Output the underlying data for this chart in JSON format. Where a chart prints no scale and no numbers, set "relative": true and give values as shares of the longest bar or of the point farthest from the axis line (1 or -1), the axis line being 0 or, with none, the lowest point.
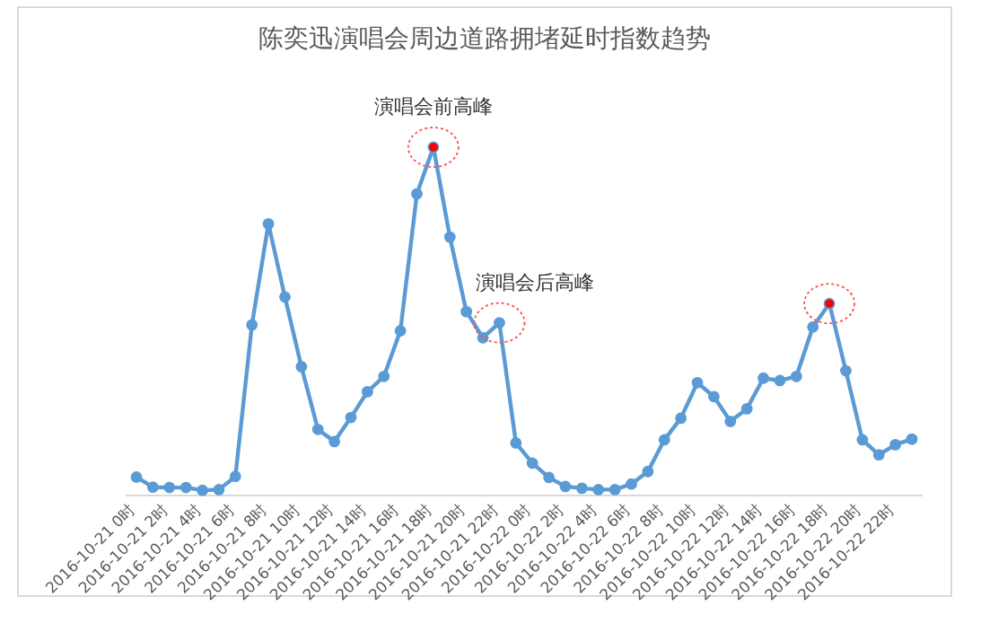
{
  "chart_data": {
    "type": "line",
    "title": "陈奕迅演唱会周边道路拥堵延时指数趋势",
    "relative": true,
    "marker": "circle",
    "categories": [
      "2016-10-21 0时",
      null,
      "2016-10-21 2时",
      null,
      "2016-10-21 4时",
      null,
      "2016-10-21 6时",
      null,
      "2016-10-21 8时",
      null,
      "2016-10-21 10时",
      null,
      "2016-10-21 12时",
      null,
      "2016-10-21 14时",
      null,
      "2016-10-21 16时",
      null,
      "2016-10-21 18时",
      null,
      "2016-10-21 20时",
      null,
      "2016-10-21 22时",
      null,
      "2016-10-22 0时",
      null,
      "2016-10-22 2时",
      null,
      "2016-10-22 4时",
      null,
      "2016-10-22 6时",
      null,
      "2016-10-22 8时",
      null,
      "2016-10-22 10时",
      null,
      "2016-10-22 12时",
      null,
      "2016-10-22 14时",
      null,
      "2016-10-22 16时",
      null,
      "2016-10-22 18时",
      null,
      "2016-10-22 20时",
      null,
      "2016-10-22 22时",
      null
    ],
    "series": [
      {
        "color": "#5b9bd5",
        "colors": [
          "#5b9bd5",
          "#5b9bd5",
          "#5b9bd5",
          "#5b9bd5",
          "#5b9bd5",
          "#5b9bd5",
          "#5b9bd5",
          "#5b9bd5",
          "#5b9bd5",
          "#5b9bd5",
          "#5b9bd5",
          "#5b9bd5",
          "#5b9bd5",
          "#5b9bd5",
          "#5b9bd5",
          "#5b9bd5",
          "#5b9bd5",
          "#5b9bd5",
          "#ff0000",
          "#5b9bd5",
          "#5b9bd5",
          "#5b9bd5",
          "#5b9bd5",
          "#5b9bd5",
          "#5b9bd5",
          "#5b9bd5",
          "#5b9bd5",
          "#5b9bd5",
          "#5b9bd5",
          "#5b9bd5",
          "#5b9bd5",
          "#5b9bd5",
          "#5b9bd5",
          "#5b9bd5",
          "#5b9bd5",
          "#5b9bd5",
          "#5b9bd5",
          "#5b9bd5",
          "#5b9bd5",
          "#5b9bd5",
          "#5b9bd5",
          "#5b9bd5",
          "#ff0000",
          "#5b9bd5",
          "#5b9bd5",
          "#5b9bd5",
          "#5b9bd5",
          "#5b9bd5"
        ],
        "values": [
          0.053,
          0.024,
          0.023,
          0.023,
          0.015,
          0.017,
          0.055,
          0.49,
          0.78,
          0.57,
          0.37,
          0.19,
          0.155,
          0.224,
          0.298,
          0.342,
          0.473,
          0.866,
          1,
          0.742,
          0.528,
          0.453,
          0.496,
          0.151,
          0.093,
          0.052,
          0.026,
          0.021,
          0.017,
          0.017,
          0.033,
          0.069,
          0.16,
          0.222,
          0.324,
          0.284,
          0.213,
          0.249,
          0.337,
          0.33,
          0.342,
          0.484,
          0.551,
          0.358,
          0.16,
          0.117,
          0.146,
          0.162
        ]
      }
    ],
    "annotations": [
      {
        "text": "演唱会前高峰",
        "x": "2016-10-21 18时",
        "y": 1
      },
      {
        "text": "演唱会后高峰",
        "x": "2016-10-21 22时",
        "y": 0.496
      }
    ]
  }
}
